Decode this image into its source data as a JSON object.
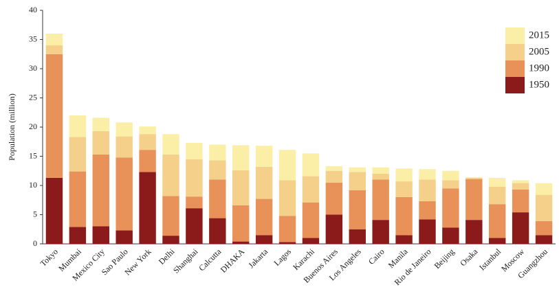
{
  "chart_data": {
    "type": "stacked_bar",
    "y_label": "Population (million)",
    "categories": [
      "Tokyo",
      "Mumbai",
      "Mexico City",
      "Sao Paulo",
      "New York",
      "Delhi",
      "Shanghai",
      "Calcutta",
      "DHAKA",
      "Jakarta",
      "Lagos",
      "Karachi",
      "Buenos Aires",
      "Los Angeles",
      "Cairo",
      "Manila",
      "Rio de Janeiro",
      "Beijing",
      "Osaka",
      "Istanbul",
      "Moscow",
      "Guangzhou"
    ],
    "series": [
      {
        "name": "1950",
        "color": "#8b1a1a",
        "values": [
          11.3,
          2.9,
          3.0,
          2.3,
          12.3,
          1.4,
          6.1,
          4.4,
          0.4,
          1.5,
          0.3,
          1.0,
          5.0,
          2.5,
          4.1,
          1.5,
          4.2,
          2.8,
          4.1,
          1.0,
          5.4,
          1.5
        ]
      },
      {
        "name": "1990",
        "color": "#e8925a",
        "values": [
          21.2,
          9.5,
          12.3,
          12.5,
          3.8,
          6.8,
          2.0,
          6.6,
          6.2,
          6.2,
          4.5,
          6.1,
          5.5,
          6.7,
          6.9,
          6.5,
          3.1,
          6.7,
          7.0,
          5.8,
          3.9,
          2.4
        ]
      },
      {
        "name": "2005",
        "color": "#f5d08a",
        "values": [
          1.5,
          5.9,
          4.0,
          3.6,
          2.7,
          7.1,
          6.4,
          3.3,
          6.0,
          5.5,
          6.1,
          4.5,
          2.0,
          3.1,
          1.0,
          2.7,
          3.7,
          1.4,
          0.2,
          3.0,
          1.1,
          4.5
        ]
      },
      {
        "name": "2015",
        "color": "#fbefa8",
        "values": [
          2.0,
          3.7,
          2.3,
          2.4,
          1.3,
          3.5,
          2.8,
          2.7,
          4.3,
          3.6,
          5.2,
          3.9,
          0.8,
          0.8,
          1.1,
          2.2,
          1.8,
          1.6,
          0.1,
          1.5,
          0.5,
          2.0
        ]
      }
    ],
    "ylim": [
      0,
      40
    ],
    "yticks": [
      0,
      5,
      10,
      15,
      20,
      25,
      30,
      35,
      40
    ],
    "legend": "top-right",
    "legend_order": "reverse"
  }
}
